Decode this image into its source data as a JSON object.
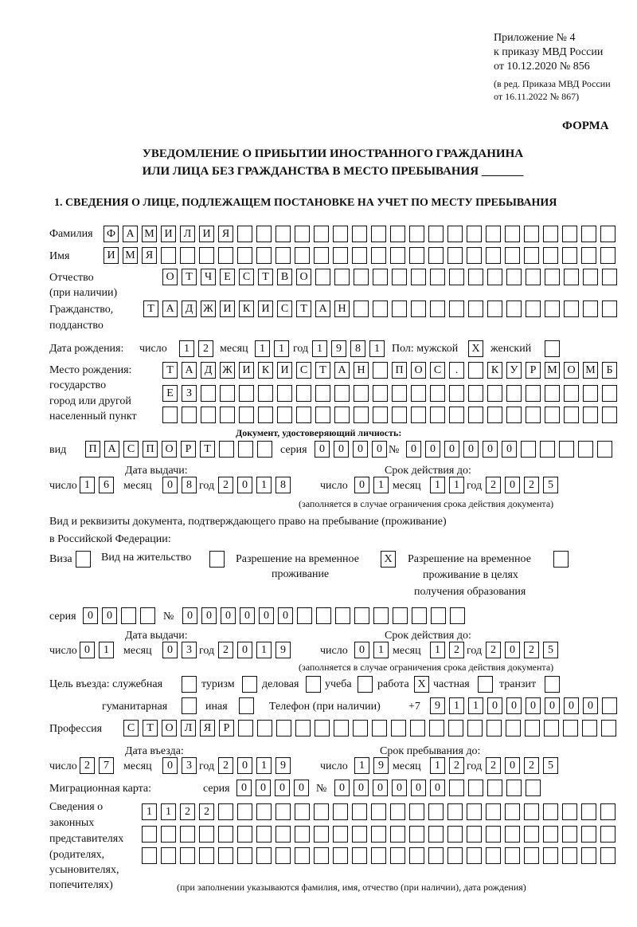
{
  "header": {
    "appendix": [
      "Приложение № 4",
      "к приказу МВД России",
      "от 10.12.2020 № 856"
    ],
    "revision": [
      "(в ред. Приказа МВД России",
      "от 16.11.2022 № 867)"
    ],
    "form_label": "ФОРМА",
    "title": [
      "УВЕДОМЛЕНИЕ О ПРИБЫТИИ ИНОСТРАННОГО ГРАЖДАНИНА",
      "ИЛИ ЛИЦА БЕЗ ГРАЖДАНСТВА В МЕСТО ПРЕБЫВАНИЯ _______"
    ],
    "section1": "1. СВЕДЕНИЯ О ЛИЦЕ, ПОДЛЕЖАЩЕМ ПОСТАНОВКЕ НА УЧЕТ ПО МЕСТУ ПРЕБЫВАНИЯ"
  },
  "person": {
    "surname": {
      "label": "Фамилия",
      "value": "ФАМИЛИЯ"
    },
    "name": {
      "label": "Имя",
      "value": "ИМЯ"
    },
    "patronymic": {
      "label": [
        "Отчество",
        "(при наличии)"
      ],
      "value": "ОТЧЕСТВО"
    },
    "citizenship": {
      "label": [
        "Гражданство,",
        "подданство"
      ],
      "value": "ТАДЖИКИСТАН"
    },
    "birth_date": {
      "label": "Дата рождения:",
      "day_label": "число",
      "month_label": "месяц",
      "year_label": "год",
      "day": "12",
      "month": "11",
      "year": "1981"
    },
    "sex": {
      "label": "Пол: мужской",
      "male": "X",
      "female_label": "женский",
      "female": ""
    },
    "birth_place": {
      "label": [
        "Место рождения:",
        "государство",
        "город или другой",
        "населенный пункт"
      ],
      "lines": [
        "ТАДЖИКИСТАН ПОС. КУРМОМБ",
        "ЕЗ",
        ""
      ]
    }
  },
  "id_document": {
    "heading": "Документ, удостоверяющий личность:",
    "type_label": "вид",
    "type": "ПАСПОРТ",
    "series_label": "серия",
    "series": "0000",
    "number_label": "№",
    "number": "000000",
    "issue_label": "Дата выдачи:",
    "valid_label": "Срок действия до:",
    "day_label": "число",
    "month_label": "месяц",
    "year_label": "год",
    "issue": {
      "day": "16",
      "month": "08",
      "year": "2018"
    },
    "valid": {
      "day": "01",
      "month": "11",
      "year": "2025"
    },
    "note": "(заполняется в случае ограничения срока действия документа)"
  },
  "stay_document": {
    "heading": [
      "Вид и реквизиты документа, подтверждающего право на пребывание (проживание)",
      "в Российской Федерации:"
    ],
    "visa": {
      "label": "Виза",
      "value": ""
    },
    "residence": {
      "label": "Вид на жительство",
      "value": ""
    },
    "temp_residence": {
      "label": [
        "Разрешение на временное",
        "проживание"
      ],
      "value": "X"
    },
    "temp_residence_edu": {
      "label": [
        "Разрешение на временное",
        "проживание в целях",
        "получения образования"
      ],
      "value": ""
    },
    "series_label": "серия",
    "series": "00",
    "number_label": "№",
    "number": "000000",
    "issue_label": "Дата выдачи:",
    "valid_label": "Срок действия до:",
    "day_label": "число",
    "month_label": "месяц",
    "year_label": "год",
    "issue": {
      "day": "01",
      "month": "03",
      "year": "2019"
    },
    "valid": {
      "day": "01",
      "month": "12",
      "year": "2025"
    },
    "note": "(заполняется в случае ограничения срока действия документа)"
  },
  "purpose": {
    "label": "Цель въезда: служебная",
    "options": [
      {
        "label": "",
        "value": ""
      },
      {
        "label": "туризм",
        "value": ""
      },
      {
        "label": "деловая",
        "value": ""
      },
      {
        "label": "учеба",
        "value": ""
      },
      {
        "label": "работа",
        "value": "X"
      },
      {
        "label": "частная",
        "value": ""
      },
      {
        "label": "транзит",
        "value": ""
      },
      {
        "label": "гуманитарная",
        "value": ""
      },
      {
        "label": "иная",
        "value": ""
      }
    ]
  },
  "phone": {
    "label": "Телефон (при наличии)",
    "prefix": "+7",
    "value": "911000000"
  },
  "profession": {
    "label": "Профессия",
    "value": "СТОЛЯР"
  },
  "entry": {
    "entry_label": "Дата въезда:",
    "stay_label": "Срок пребывания до:",
    "day_label": "число",
    "month_label": "месяц",
    "year_label": "год",
    "entry": {
      "day": "27",
      "month": "03",
      "year": "2019"
    },
    "stay": {
      "day": "19",
      "month": "12",
      "year": "2025"
    }
  },
  "migration_card": {
    "label": "Миграционная карта:",
    "series_label": "серия",
    "series": "0000",
    "number_label": "№",
    "number": "000000"
  },
  "representatives": {
    "label": [
      "Сведения о",
      "законных",
      "представителях",
      "(родителях,",
      "усыновителях,",
      "попечителях)"
    ],
    "lines": [
      "1122",
      "",
      ""
    ],
    "note": "(при заполнении указываются фамилия, имя, отчество (при наличии), дата рождения)"
  }
}
